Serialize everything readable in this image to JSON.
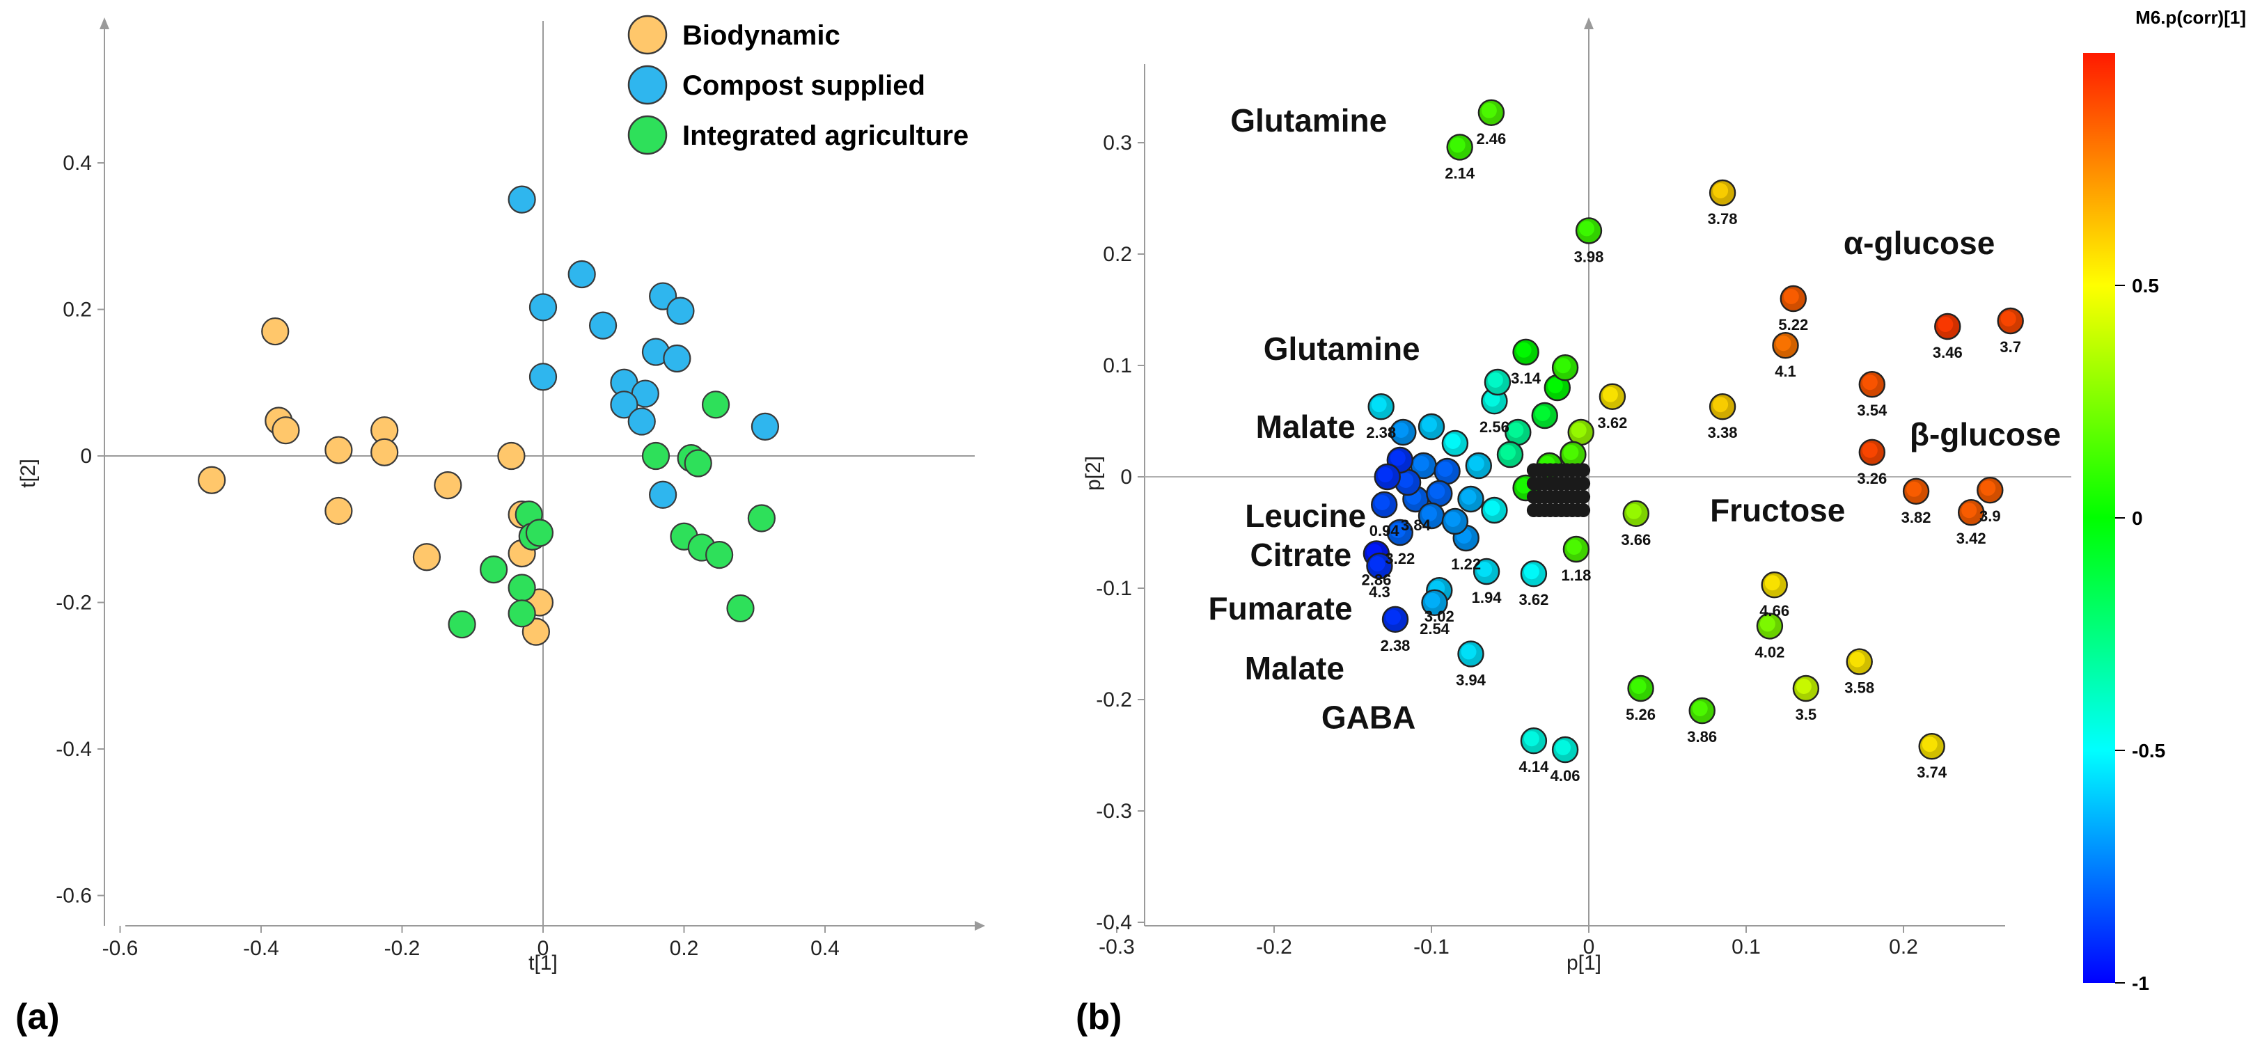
{
  "chart_data": [
    {
      "type": "scatter",
      "panel_label": "(a)",
      "xlabel": "t[1]",
      "ylabel": "t[2]",
      "xlim": [
        -0.6,
        0.6
      ],
      "ylim": [
        -0.6,
        0.55
      ],
      "xticks": [
        -0.6,
        -0.4,
        -0.2,
        0,
        0.2,
        0.4
      ],
      "yticks": [
        -0.6,
        -0.4,
        -0.2,
        0,
        0.2,
        0.4
      ],
      "xtick_labels": [
        "-0.6",
        "-0.4",
        "-0.2",
        "0",
        "0.2",
        "0.4"
      ],
      "ytick_labels": [
        "-0.6",
        "-0.4",
        "-0.2",
        "0",
        "0.2",
        "0.4"
      ],
      "legend_position": "top-right",
      "series": [
        {
          "name": "Biodynamic",
          "color": "#ffc76b",
          "x": [
            -0.47,
            -0.38,
            -0.375,
            -0.365,
            -0.29,
            -0.29,
            -0.225,
            -0.225,
            -0.135,
            -0.165,
            -0.045,
            -0.03,
            -0.03,
            -0.005,
            -0.01
          ],
          "y": [
            -0.033,
            0.17,
            0.048,
            0.035,
            0.008,
            -0.075,
            0.035,
            0.005,
            -0.04,
            -0.138,
            0.0,
            -0.08,
            -0.133,
            -0.2,
            -0.24
          ]
        },
        {
          "name": "Compost supplied",
          "color": "#2fb6ee",
          "x": [
            -0.03,
            0.0,
            0.055,
            0.085,
            0.17,
            0.195,
            0.0,
            0.16,
            0.19,
            0.115,
            0.145,
            0.115,
            0.14,
            0.315,
            0.17
          ],
          "y": [
            0.35,
            0.203,
            0.248,
            0.178,
            0.218,
            0.198,
            0.108,
            0.142,
            0.133,
            0.1,
            0.085,
            0.07,
            0.047,
            0.04,
            -0.053
          ]
        },
        {
          "name": "Integrated agriculture",
          "color": "#2ee05a",
          "x": [
            0.245,
            0.16,
            0.21,
            0.22,
            0.31,
            -0.02,
            -0.015,
            -0.005,
            0.2,
            0.225,
            0.25,
            0.28,
            -0.07,
            -0.03,
            -0.03,
            -0.115
          ],
          "y": [
            0.07,
            0.0,
            -0.003,
            -0.01,
            -0.085,
            -0.08,
            -0.11,
            -0.105,
            -0.11,
            -0.125,
            -0.135,
            -0.208,
            -0.155,
            -0.18,
            -0.215,
            -0.23
          ]
        }
      ]
    },
    {
      "type": "scatter",
      "panel_label": "(b)",
      "xlabel": "p[1]",
      "ylabel": "p[2]",
      "xlim": [
        -0.3,
        0.28
      ],
      "ylim": [
        -0.4,
        0.37
      ],
      "xticks": [
        -0.3,
        -0.2,
        -0.1,
        0,
        0.1,
        0.2
      ],
      "yticks": [
        -0.4,
        -0.3,
        -0.2,
        -0.1,
        0,
        0.1,
        0.2,
        0.3
      ],
      "xtick_labels": [
        "-0.3",
        "-0.2",
        "-0.1",
        "0",
        "0.1",
        "0.2"
      ],
      "ytick_labels": [
        "-0.4",
        "-0.3",
        "-0.2",
        "-0.1",
        "0",
        "0.1",
        "0.2",
        "0.3"
      ],
      "color_variable": "M6.p(corr)[1]",
      "colorbar_ticks": [
        "0.5",
        "0",
        "-0.5",
        "-1"
      ],
      "points": [
        {
          "x": -0.062,
          "y": 0.327,
          "c": 0.15,
          "label": "2.46"
        },
        {
          "x": -0.082,
          "y": 0.296,
          "c": 0.12,
          "label": "2.14"
        },
        {
          "x": 0.0,
          "y": 0.221,
          "c": 0.12,
          "label": "3.98"
        },
        {
          "x": 0.085,
          "y": 0.255,
          "c": 0.6,
          "label": "3.78"
        },
        {
          "x": 0.13,
          "y": 0.16,
          "c": 0.85,
          "label": "5.22"
        },
        {
          "x": 0.125,
          "y": 0.118,
          "c": 0.8,
          "label": "4.1"
        },
        {
          "x": 0.228,
          "y": 0.135,
          "c": 0.93,
          "label": "3.46"
        },
        {
          "x": 0.268,
          "y": 0.14,
          "c": 0.9,
          "label": "3.7"
        },
        {
          "x": 0.18,
          "y": 0.083,
          "c": 0.87,
          "label": "3.54"
        },
        {
          "x": 0.18,
          "y": 0.022,
          "c": 0.9,
          "label": "3.26"
        },
        {
          "x": 0.208,
          "y": -0.013,
          "c": 0.85,
          "label": "3.82"
        },
        {
          "x": 0.255,
          "y": -0.012,
          "c": 0.85,
          "label": "3.9"
        },
        {
          "x": 0.243,
          "y": -0.032,
          "c": 0.85,
          "label": "3.42"
        },
        {
          "x": 0.085,
          "y": 0.063,
          "c": 0.6,
          "label": "3.38"
        },
        {
          "x": 0.015,
          "y": 0.072,
          "c": 0.55,
          "label": "3.62"
        },
        {
          "x": 0.03,
          "y": -0.033,
          "c": 0.3,
          "label": "3.66"
        },
        {
          "x": -0.008,
          "y": -0.065,
          "c": 0.15,
          "label": "1.18"
        },
        {
          "x": -0.035,
          "y": -0.087,
          "c": -0.5,
          "label": "3.62"
        },
        {
          "x": 0.118,
          "y": -0.097,
          "c": 0.55,
          "label": "4.66"
        },
        {
          "x": 0.115,
          "y": -0.134,
          "c": 0.25,
          "label": "4.02"
        },
        {
          "x": 0.138,
          "y": -0.19,
          "c": 0.4,
          "label": "3.5"
        },
        {
          "x": 0.172,
          "y": -0.166,
          "c": 0.55,
          "label": "3.58"
        },
        {
          "x": 0.218,
          "y": -0.242,
          "c": 0.55,
          "label": "3.74"
        },
        {
          "x": 0.033,
          "y": -0.19,
          "c": 0.12,
          "label": "5.26"
        },
        {
          "x": 0.072,
          "y": -0.21,
          "c": 0.15,
          "label": "3.86"
        },
        {
          "x": -0.035,
          "y": -0.237,
          "c": -0.45,
          "label": "4.14"
        },
        {
          "x": -0.015,
          "y": -0.245,
          "c": -0.45,
          "label": "4.06"
        },
        {
          "x": -0.075,
          "y": -0.159,
          "c": -0.55,
          "label": "3.94"
        },
        {
          "x": -0.123,
          "y": -0.128,
          "c": -0.9,
          "label": "2.38"
        },
        {
          "x": -0.095,
          "y": -0.102,
          "c": -0.6,
          "label": "3.02"
        },
        {
          "x": -0.098,
          "y": -0.113,
          "c": -0.65,
          "label": "2.54"
        },
        {
          "x": -0.065,
          "y": -0.085,
          "c": -0.55,
          "label": "1.94"
        },
        {
          "x": -0.135,
          "y": -0.069,
          "c": -0.95,
          "label": "2.86"
        },
        {
          "x": -0.133,
          "y": -0.08,
          "c": -0.9,
          "label": "4.3"
        },
        {
          "x": -0.12,
          "y": -0.05,
          "c": -0.8,
          "label": "3.22"
        },
        {
          "x": -0.078,
          "y": -0.055,
          "c": -0.7,
          "label": "1.22"
        },
        {
          "x": -0.13,
          "y": -0.025,
          "c": -0.85,
          "label": "0.94"
        },
        {
          "x": -0.11,
          "y": -0.02,
          "c": -0.8,
          "label": "3.84"
        },
        {
          "x": -0.132,
          "y": 0.063,
          "c": -0.55,
          "label": "2.38"
        },
        {
          "x": -0.06,
          "y": 0.068,
          "c": -0.45,
          "label": "2.56"
        },
        {
          "x": -0.04,
          "y": 0.112,
          "c": 0.0,
          "label": "3.14"
        },
        {
          "x": -0.058,
          "y": 0.085,
          "c": -0.4,
          "label": ""
        },
        {
          "x": -0.02,
          "y": 0.08,
          "c": 0.0,
          "label": ""
        },
        {
          "x": -0.015,
          "y": 0.098,
          "c": 0.1,
          "label": ""
        },
        {
          "x": -0.028,
          "y": 0.055,
          "c": -0.1,
          "label": ""
        },
        {
          "x": -0.005,
          "y": 0.04,
          "c": 0.3,
          "label": ""
        },
        {
          "x": -0.045,
          "y": 0.04,
          "c": -0.3,
          "label": ""
        },
        {
          "x": -0.1,
          "y": 0.045,
          "c": -0.6,
          "label": ""
        },
        {
          "x": -0.118,
          "y": 0.04,
          "c": -0.7,
          "label": ""
        },
        {
          "x": -0.085,
          "y": 0.03,
          "c": -0.5,
          "label": ""
        },
        {
          "x": -0.105,
          "y": 0.01,
          "c": -0.75,
          "label": ""
        },
        {
          "x": -0.09,
          "y": 0.005,
          "c": -0.8,
          "label": ""
        },
        {
          "x": -0.07,
          "y": 0.01,
          "c": -0.6,
          "label": ""
        },
        {
          "x": -0.115,
          "y": -0.005,
          "c": -0.85,
          "label": ""
        },
        {
          "x": -0.095,
          "y": -0.015,
          "c": -0.8,
          "label": ""
        },
        {
          "x": -0.075,
          "y": -0.02,
          "c": -0.65,
          "label": ""
        },
        {
          "x": -0.06,
          "y": -0.03,
          "c": -0.5,
          "label": ""
        },
        {
          "x": -0.1,
          "y": -0.035,
          "c": -0.75,
          "label": ""
        },
        {
          "x": -0.085,
          "y": -0.04,
          "c": -0.7,
          "label": ""
        },
        {
          "x": -0.04,
          "y": -0.01,
          "c": 0.05,
          "label": ""
        },
        {
          "x": -0.025,
          "y": 0.01,
          "c": 0.1,
          "label": ""
        },
        {
          "x": -0.01,
          "y": 0.02,
          "c": 0.15,
          "label": ""
        },
        {
          "x": -0.05,
          "y": 0.02,
          "c": -0.3,
          "label": ""
        },
        {
          "x": -0.12,
          "y": 0.015,
          "c": -0.9,
          "label": ""
        },
        {
          "x": -0.128,
          "y": 0.0,
          "c": -0.9,
          "label": ""
        }
      ],
      "annotations": [
        {
          "text": "Glutamine",
          "x": -0.178,
          "y": 0.31
        },
        {
          "text": "α-glucose",
          "x": 0.21,
          "y": 0.2
        },
        {
          "text": "Glutamine",
          "x": -0.157,
          "y": 0.105
        },
        {
          "text": "Malate",
          "x": -0.18,
          "y": 0.035
        },
        {
          "text": "β-glucose",
          "x": 0.252,
          "y": 0.028
        },
        {
          "text": "Leucine",
          "x": -0.18,
          "y": -0.045
        },
        {
          "text": "Fructose",
          "x": 0.12,
          "y": -0.04
        },
        {
          "text": "Citrate",
          "x": -0.183,
          "y": -0.08
        },
        {
          "text": "Fumarate",
          "x": -0.196,
          "y": -0.128
        },
        {
          "text": "Malate",
          "x": -0.187,
          "y": -0.182
        },
        {
          "text": "GABA",
          "x": -0.14,
          "y": -0.226
        }
      ]
    }
  ]
}
